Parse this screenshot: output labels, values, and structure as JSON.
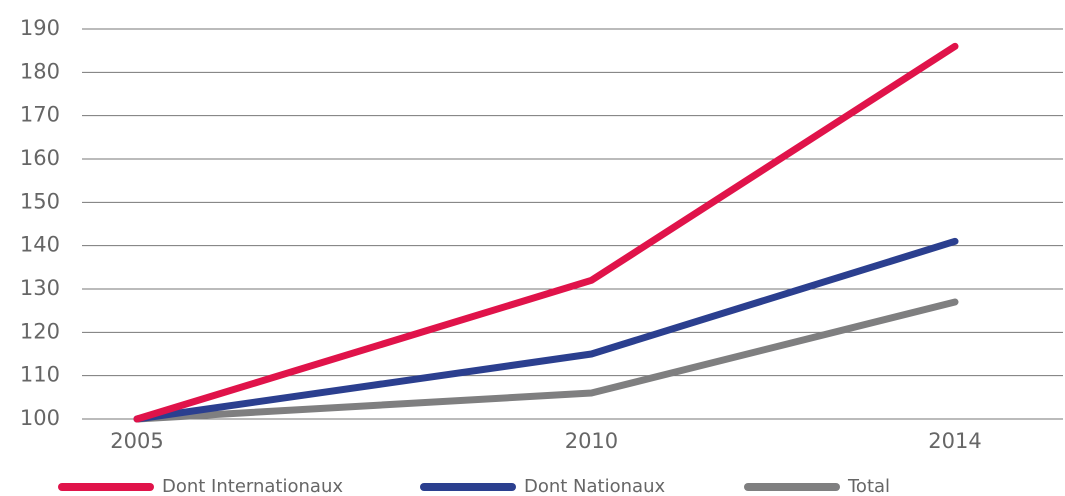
{
  "chart_data": {
    "type": "line",
    "x": [
      2005,
      2010,
      2014
    ],
    "xlim": [
      2005,
      2014
    ],
    "xticks": [
      2005,
      2010,
      2014
    ],
    "ylim": [
      100,
      190
    ],
    "yticks": [
      100,
      110,
      120,
      130,
      140,
      150,
      160,
      170,
      180,
      190
    ],
    "grid": true,
    "legend": "bottom",
    "series": [
      {
        "name": "Dont Internationaux",
        "color": "#e0134a",
        "values": [
          100,
          132,
          186
        ]
      },
      {
        "name": "Dont Nationaux",
        "color": "#2b3f8f",
        "values": [
          100,
          115,
          141
        ]
      },
      {
        "name": "Total",
        "color": "#7f7f80",
        "values": [
          100,
          106,
          127
        ]
      }
    ]
  }
}
